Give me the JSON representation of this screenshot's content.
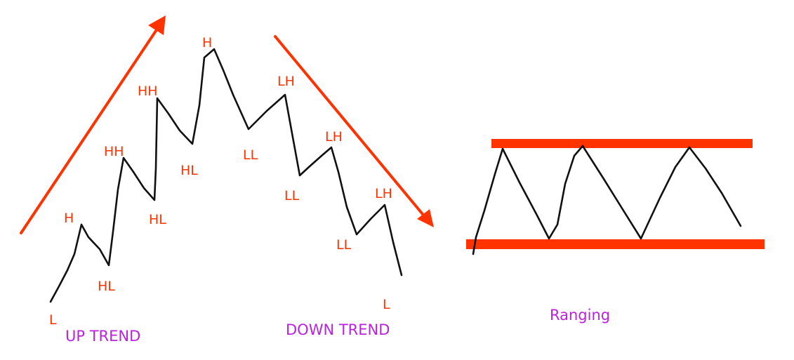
{
  "colors": {
    "background": "#ffffff",
    "price_line": "#111111",
    "trend_arrow": "#ff3300",
    "swing_label": "#ff3300",
    "caption": "#bb22dd",
    "range_band": "#ff3300"
  },
  "captions": {
    "up_trend": "UP TREND",
    "down_trend": "DOWN TREND",
    "ranging": "Ranging"
  },
  "swing_labels": [
    "L",
    "H",
    "HL",
    "HH",
    "HL",
    "HH",
    "HL",
    "H",
    "LL",
    "LH",
    "LL",
    "LH",
    "LL",
    "LH",
    "L"
  ]
}
